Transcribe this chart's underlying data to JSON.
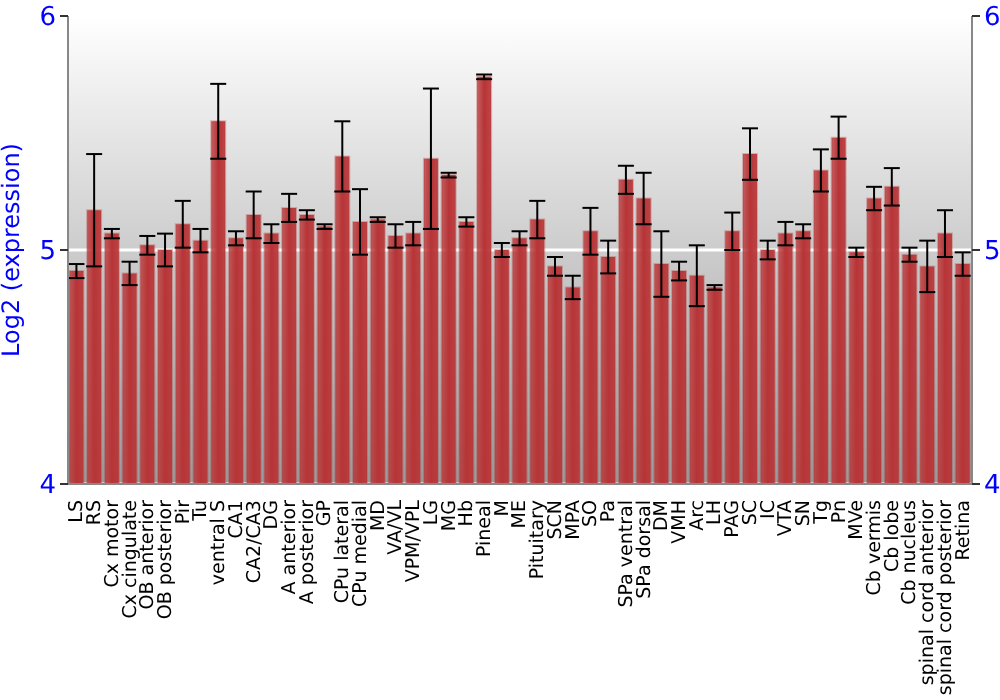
{
  "chart_data": {
    "type": "bar",
    "ylabel": "Log2 (expression)",
    "categories": [
      "LS",
      "RS",
      "Cx motor",
      "Cx cingulate",
      "OB anterior",
      "OB posterior",
      "Pir",
      "Tu",
      "ventral S",
      "CA1",
      "CA2/CA3",
      "DG",
      "A anterior",
      "A posterior",
      "GP",
      "CPu lateral",
      "CPu medial",
      "MD",
      "VA/VL",
      "VPM/VPL",
      "LG",
      "MG",
      "Hb",
      "Pineal",
      "M",
      "ME",
      "Pituitary",
      "SCN",
      "MPA",
      "SO",
      "Pa",
      "SPa ventral",
      "SPa dorsal",
      "DM",
      "VMH",
      "Arc",
      "LH",
      "PAG",
      "SC",
      "IC",
      "VTA",
      "SN",
      "Tg",
      "Pn",
      "MVe",
      "Cb vermis",
      "Cb lobe",
      "Cb nucleus",
      "spinal cord anterior",
      "spinal cord posterior",
      "Retina"
    ],
    "values": [
      4.91,
      5.17,
      5.07,
      4.9,
      5.02,
      5.0,
      5.11,
      5.04,
      5.55,
      5.05,
      5.15,
      5.07,
      5.18,
      5.15,
      5.1,
      5.4,
      5.12,
      5.13,
      5.06,
      5.07,
      5.39,
      5.32,
      5.12,
      5.74,
      5.0,
      5.05,
      5.13,
      4.93,
      4.84,
      5.08,
      4.97,
      5.3,
      5.22,
      4.94,
      4.91,
      4.89,
      4.84,
      5.08,
      5.41,
      5.0,
      5.07,
      5.08,
      5.34,
      5.48,
      4.99,
      5.22,
      5.27,
      4.98,
      4.93,
      5.07,
      4.94
    ],
    "errors": [
      0.03,
      0.24,
      0.02,
      0.05,
      0.04,
      0.07,
      0.1,
      0.05,
      0.16,
      0.03,
      0.1,
      0.04,
      0.06,
      0.02,
      0.01,
      0.15,
      0.14,
      0.01,
      0.05,
      0.05,
      0.3,
      0.01,
      0.02,
      0.01,
      0.03,
      0.03,
      0.08,
      0.04,
      0.05,
      0.1,
      0.07,
      0.06,
      0.11,
      0.14,
      0.04,
      0.13,
      0.01,
      0.08,
      0.11,
      0.04,
      0.05,
      0.03,
      0.09,
      0.09,
      0.02,
      0.05,
      0.08,
      0.03,
      0.11,
      0.1,
      0.05
    ],
    "color": "#b83436",
    "ylim": [
      4,
      6
    ],
    "yticks": [
      4,
      5,
      6
    ],
    "y2lim": [
      4,
      6
    ],
    "y2ticks": [
      4,
      5,
      6
    ],
    "grid": "y"
  }
}
